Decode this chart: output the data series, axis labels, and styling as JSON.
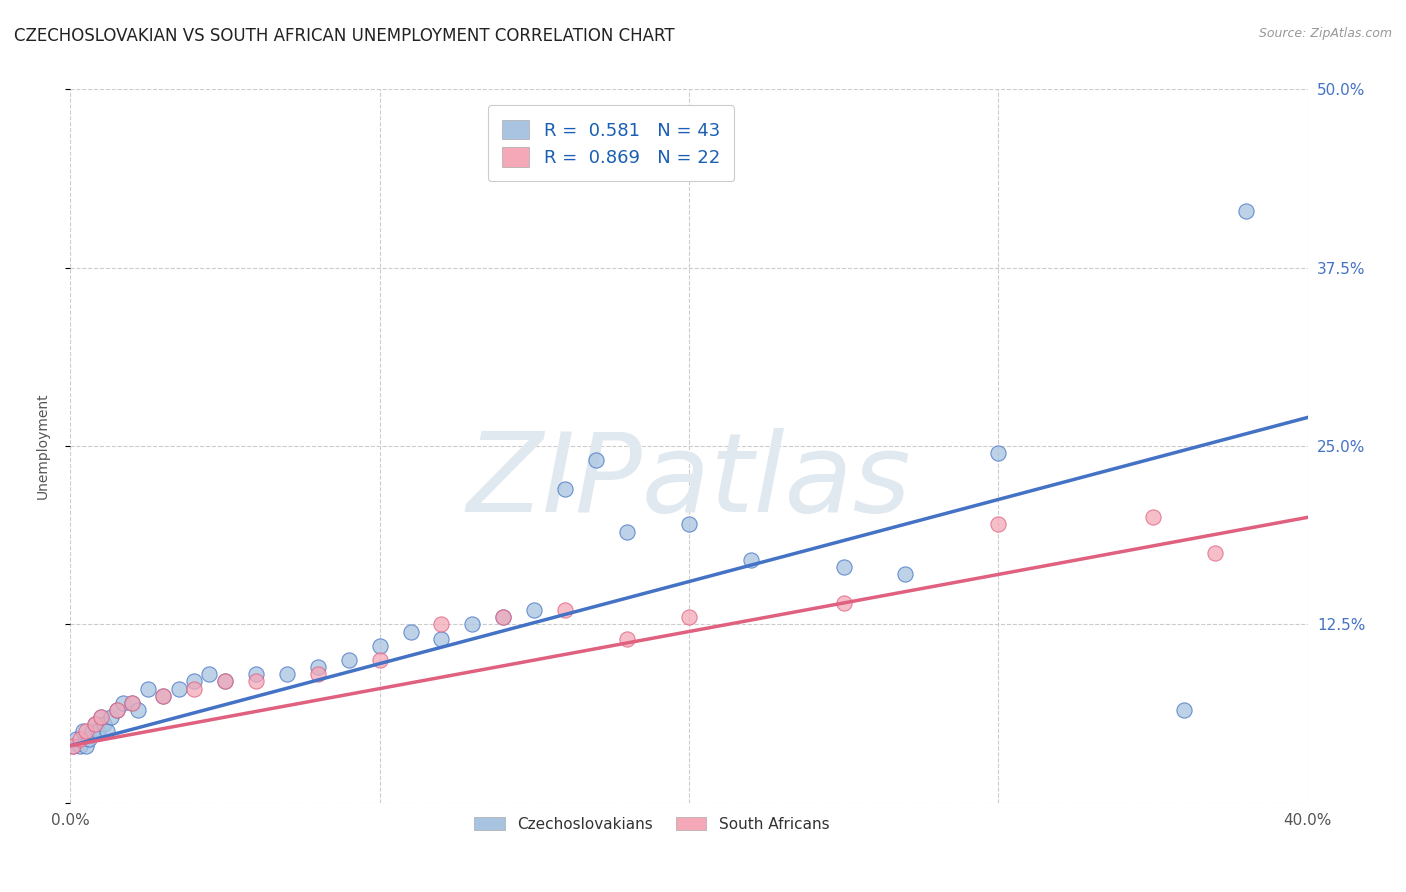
{
  "title": "CZECHOSLOVAKIAN VS SOUTH AFRICAN UNEMPLOYMENT CORRELATION CHART",
  "source_text": "Source: ZipAtlas.com",
  "ylabel": "Unemployment",
  "xlim": [
    0.0,
    0.4
  ],
  "ylim": [
    0.0,
    0.5
  ],
  "xticks": [
    0.0,
    0.1,
    0.2,
    0.3,
    0.4
  ],
  "xticklabels": [
    "0.0%",
    "",
    "",
    "",
    "40.0%"
  ],
  "yticks": [
    0.0,
    0.125,
    0.25,
    0.375,
    0.5
  ],
  "yticklabels": [
    "",
    "12.5%",
    "25.0%",
    "37.5%",
    "50.0%"
  ],
  "blue_color": "#a8c4e0",
  "pink_color": "#f4a8b8",
  "blue_line_color": "#4472c4",
  "pink_line_color": "#e06080",
  "legend_label_blue": "R =  0.581   N = 43",
  "legend_label_pink": "R =  0.869   N = 22",
  "watermark": "ZIPatlas",
  "background_color": "#ffffff",
  "grid_color": "#cccccc",
  "blue_scatter": [
    [
      0.001,
      0.04
    ],
    [
      0.002,
      0.045
    ],
    [
      0.003,
      0.04
    ],
    [
      0.004,
      0.05
    ],
    [
      0.005,
      0.04
    ],
    [
      0.006,
      0.045
    ],
    [
      0.007,
      0.05
    ],
    [
      0.008,
      0.055
    ],
    [
      0.009,
      0.05
    ],
    [
      0.01,
      0.06
    ],
    [
      0.011,
      0.055
    ],
    [
      0.012,
      0.05
    ],
    [
      0.013,
      0.06
    ],
    [
      0.015,
      0.065
    ],
    [
      0.017,
      0.07
    ],
    [
      0.02,
      0.07
    ],
    [
      0.022,
      0.065
    ],
    [
      0.025,
      0.08
    ],
    [
      0.03,
      0.075
    ],
    [
      0.035,
      0.08
    ],
    [
      0.04,
      0.085
    ],
    [
      0.045,
      0.09
    ],
    [
      0.05,
      0.085
    ],
    [
      0.06,
      0.09
    ],
    [
      0.07,
      0.09
    ],
    [
      0.08,
      0.095
    ],
    [
      0.09,
      0.1
    ],
    [
      0.1,
      0.11
    ],
    [
      0.11,
      0.12
    ],
    [
      0.12,
      0.115
    ],
    [
      0.13,
      0.125
    ],
    [
      0.14,
      0.13
    ],
    [
      0.15,
      0.135
    ],
    [
      0.16,
      0.22
    ],
    [
      0.17,
      0.24
    ],
    [
      0.18,
      0.19
    ],
    [
      0.2,
      0.195
    ],
    [
      0.22,
      0.17
    ],
    [
      0.25,
      0.165
    ],
    [
      0.27,
      0.16
    ],
    [
      0.3,
      0.245
    ],
    [
      0.36,
      0.065
    ],
    [
      0.38,
      0.415
    ]
  ],
  "pink_scatter": [
    [
      0.001,
      0.04
    ],
    [
      0.003,
      0.045
    ],
    [
      0.005,
      0.05
    ],
    [
      0.008,
      0.055
    ],
    [
      0.01,
      0.06
    ],
    [
      0.015,
      0.065
    ],
    [
      0.02,
      0.07
    ],
    [
      0.03,
      0.075
    ],
    [
      0.04,
      0.08
    ],
    [
      0.05,
      0.085
    ],
    [
      0.06,
      0.085
    ],
    [
      0.08,
      0.09
    ],
    [
      0.1,
      0.1
    ],
    [
      0.12,
      0.125
    ],
    [
      0.14,
      0.13
    ],
    [
      0.16,
      0.135
    ],
    [
      0.18,
      0.115
    ],
    [
      0.2,
      0.13
    ],
    [
      0.25,
      0.14
    ],
    [
      0.3,
      0.195
    ],
    [
      0.35,
      0.2
    ],
    [
      0.37,
      0.175
    ]
  ],
  "title_fontsize": 12,
  "tick_fontsize": 11,
  "ylabel_fontsize": 10
}
